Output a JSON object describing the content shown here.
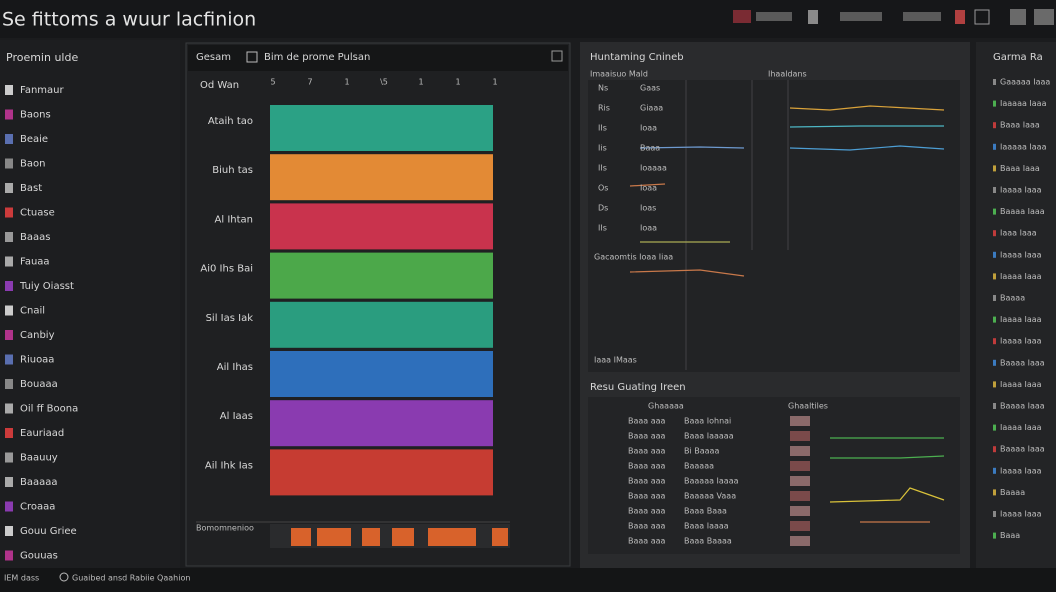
{
  "header": {
    "title": "Se fittoms a wuur lacfinion"
  },
  "sidebar": {
    "title": "Proemin ulde",
    "items": [
      "Fanmaur",
      "Baons",
      "Beaie",
      "Baon",
      "Bast",
      "Ctuase",
      "Baaas",
      "Fauaa",
      "Tuiy Oiasst",
      "Cnail",
      "Canbiy",
      "Riuoaa",
      "Bouaaa",
      "Oil ff Boona",
      "Eauriaad",
      "Baauuy",
      "Baaaaa",
      "Croaaa",
      "Gouu Griee",
      "Gouuas"
    ]
  },
  "main_panel": {
    "tab": "Gesam",
    "title": "Bim de prome Pulsan",
    "column_label": "Od Wan",
    "scale_labels": [
      "5",
      "7",
      "1",
      "\\5",
      "1",
      "1",
      "1"
    ],
    "rows": [
      {
        "label": "Ataih tao",
        "color": "#2ba185"
      },
      {
        "label": "Biuh tas",
        "color": "#e38a35"
      },
      {
        "label": "Al Ihtan",
        "color": "#c9334d"
      },
      {
        "label": "Ai0 Ihs Bai",
        "color": "#4ca84a"
      },
      {
        "label": "Sil Ias Iak",
        "color": "#2a9d7f"
      },
      {
        "label": "Ail Ihas",
        "color": "#2e6fbb"
      },
      {
        "label": "Al Iaas",
        "color": "#8a3bb0"
      },
      {
        "label": "Ail Ihk Ias",
        "color": "#c63c32"
      }
    ],
    "footer_label": "Bomomnenioo"
  },
  "analytics": {
    "title": "Huntaming Cnineb",
    "columns": [
      "Imaaisuo Mald",
      "Ihaaldans"
    ],
    "row_labels": [
      "Ns",
      "Ris",
      "IIs",
      "Iis",
      "IIs",
      "Os",
      "Ds",
      "IIs"
    ],
    "row_values": [
      "Gaas",
      "Giaaa",
      "Ioaa",
      "Baaa",
      "Ioaaaa",
      "Ioaa",
      "Ioas",
      "Ioaa"
    ],
    "section2": "Gacaomtis Ioaa Iiaa",
    "section3": "Iaaa IMaas",
    "table_title": "Resu Guating Ireen",
    "table_headers": [
      "Ghaaaaa",
      "Ghaaltiles"
    ],
    "table_rows": [
      [
        "Baaa aaa",
        "Baaa Iohnai"
      ],
      [
        "Baaa aaa",
        "Baaa Iaaaaa"
      ],
      [
        "Baaa aaa",
        "Bi Baaaa"
      ],
      [
        "Baaa aaa",
        "Baaaaa"
      ],
      [
        "Baaa aaa",
        "Baaaaa Iaaaa"
      ],
      [
        "Baaa aaa",
        "Baaaaa Vaaa"
      ],
      [
        "Baaa aaa",
        "Baaa Baaa"
      ],
      [
        "Baaa aaa",
        "Baaa Iaaaa"
      ],
      [
        "Baaa aaa",
        "Baaa Baaaa"
      ]
    ]
  },
  "side_panel": {
    "title": "Garma Ra",
    "items": [
      "Gaaaaa Iaaa",
      "Iaaaaa Iaaa",
      "Baaa Iaaa",
      "Iaaaaa Iaaa",
      "Baaa Iaaa",
      "Iaaaa Iaaa",
      "Baaaa Iaaa",
      "Iaaa Iaaa",
      "Iaaaa Iaaa",
      "Iaaaa Iaaa",
      "Baaaa",
      "Iaaaa Iaaa",
      "Iaaaa Iaaa",
      "Baaaa Iaaa",
      "Iaaaa Iaaa",
      "Baaaa Iaaa",
      "Iaaaa Iaaa",
      "Baaaa Iaaa",
      "Iaaaa Iaaa",
      "Baaaa",
      "Iaaaa Iaaa",
      "Baaa"
    ]
  },
  "status": {
    "left": "IEM dass",
    "right": "Guaibed ansd Rabiie Qaahion"
  }
}
